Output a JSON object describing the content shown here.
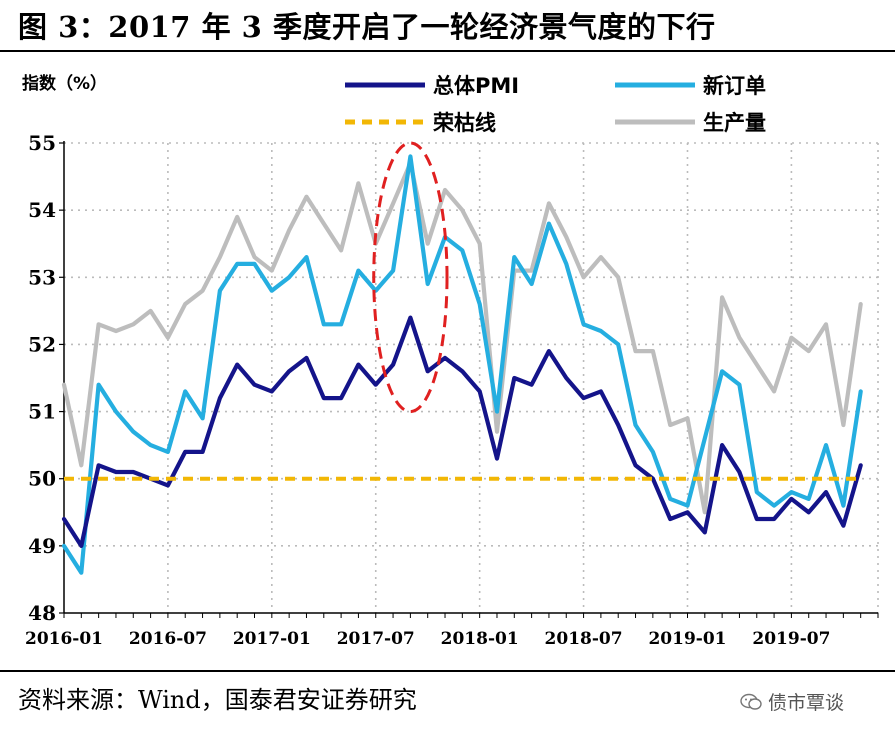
{
  "figure": {
    "title": "图 3：2017 年 3 季度开启了一轮经济景气度的下行",
    "source": "资料来源：Wind，国泰君安证券研究",
    "watermark": "债市覃谈"
  },
  "chart_data": {
    "type": "line",
    "ylabel": "指数（%）",
    "ylim": [
      48,
      55
    ],
    "yticks": [
      "48",
      "49",
      "50",
      "51",
      "52",
      "53",
      "54",
      "55"
    ],
    "xticks": [
      "2016-01",
      "2016-07",
      "2017-01",
      "2017-07",
      "2018-01",
      "2018-07",
      "2019-01",
      "2019-07"
    ],
    "grid": true,
    "legend_position": "top",
    "x": [
      "2016-01",
      "2016-02",
      "2016-03",
      "2016-04",
      "2016-05",
      "2016-06",
      "2016-07",
      "2016-08",
      "2016-09",
      "2016-10",
      "2016-11",
      "2016-12",
      "2017-01",
      "2017-02",
      "2017-03",
      "2017-04",
      "2017-05",
      "2017-06",
      "2017-07",
      "2017-08",
      "2017-09",
      "2017-10",
      "2017-11",
      "2017-12",
      "2018-01",
      "2018-02",
      "2018-03",
      "2018-04",
      "2018-05",
      "2018-06",
      "2018-07",
      "2018-08",
      "2018-09",
      "2018-10",
      "2018-11",
      "2018-12",
      "2019-01",
      "2019-02",
      "2019-03",
      "2019-04",
      "2019-05",
      "2019-06",
      "2019-07",
      "2019-08",
      "2019-09",
      "2019-10",
      "2019-11"
    ],
    "series": [
      {
        "name": "总体PMI",
        "color": "#14148a",
        "style": "solid",
        "values": [
          49.4,
          49.0,
          50.2,
          50.1,
          50.1,
          50.0,
          49.9,
          50.4,
          50.4,
          51.2,
          51.7,
          51.4,
          51.3,
          51.6,
          51.8,
          51.2,
          51.2,
          51.7,
          51.4,
          51.7,
          52.4,
          51.6,
          51.8,
          51.6,
          51.3,
          50.3,
          51.5,
          51.4,
          51.9,
          51.5,
          51.2,
          51.3,
          50.8,
          50.2,
          50.0,
          49.4,
          49.5,
          49.2,
          50.5,
          50.1,
          49.4,
          49.4,
          49.7,
          49.5,
          49.8,
          49.3,
          50.2
        ]
      },
      {
        "name": "新订单",
        "color": "#25aee0",
        "style": "solid",
        "values": [
          49.0,
          48.6,
          51.4,
          51.0,
          50.7,
          50.5,
          50.4,
          51.3,
          50.9,
          52.8,
          53.2,
          53.2,
          52.8,
          53.0,
          53.3,
          52.3,
          52.3,
          53.1,
          52.8,
          53.1,
          54.8,
          52.9,
          53.6,
          53.4,
          52.6,
          51.0,
          53.3,
          52.9,
          53.8,
          53.2,
          52.3,
          52.2,
          52.0,
          50.8,
          50.4,
          49.7,
          49.6,
          50.6,
          51.6,
          51.4,
          49.8,
          49.6,
          49.8,
          49.7,
          50.5,
          49.6,
          51.3
        ]
      },
      {
        "name": "荣枯线",
        "color": "#f2b705",
        "style": "dashed",
        "values": [
          50,
          50,
          50,
          50,
          50,
          50,
          50,
          50,
          50,
          50,
          50,
          50,
          50,
          50,
          50,
          50,
          50,
          50,
          50,
          50,
          50,
          50,
          50,
          50,
          50,
          50,
          50,
          50,
          50,
          50,
          50,
          50,
          50,
          50,
          50,
          50,
          50,
          50,
          50,
          50,
          50,
          50,
          50,
          50,
          50,
          50,
          50
        ]
      },
      {
        "name": "生产量",
        "color": "#bdbdbd",
        "style": "solid",
        "values": [
          51.4,
          50.2,
          52.3,
          52.2,
          52.3,
          52.5,
          52.1,
          52.6,
          52.8,
          53.3,
          53.9,
          53.3,
          53.1,
          53.7,
          54.2,
          53.8,
          53.4,
          54.4,
          53.5,
          54.1,
          54.7,
          53.5,
          54.3,
          54.0,
          53.5,
          50.7,
          53.1,
          53.1,
          54.1,
          53.6,
          53.0,
          53.3,
          53.0,
          51.9,
          51.9,
          50.8,
          50.9,
          49.5,
          52.7,
          52.1,
          51.7,
          51.3,
          52.1,
          51.9,
          52.3,
          50.8,
          52.6
        ]
      }
    ],
    "annotation": {
      "shape": "dashed-ellipse",
      "color": "#e02020",
      "x_from": "2017-07",
      "x_to": "2017-11",
      "y_from": 51.0,
      "y_to": 55.0
    }
  }
}
